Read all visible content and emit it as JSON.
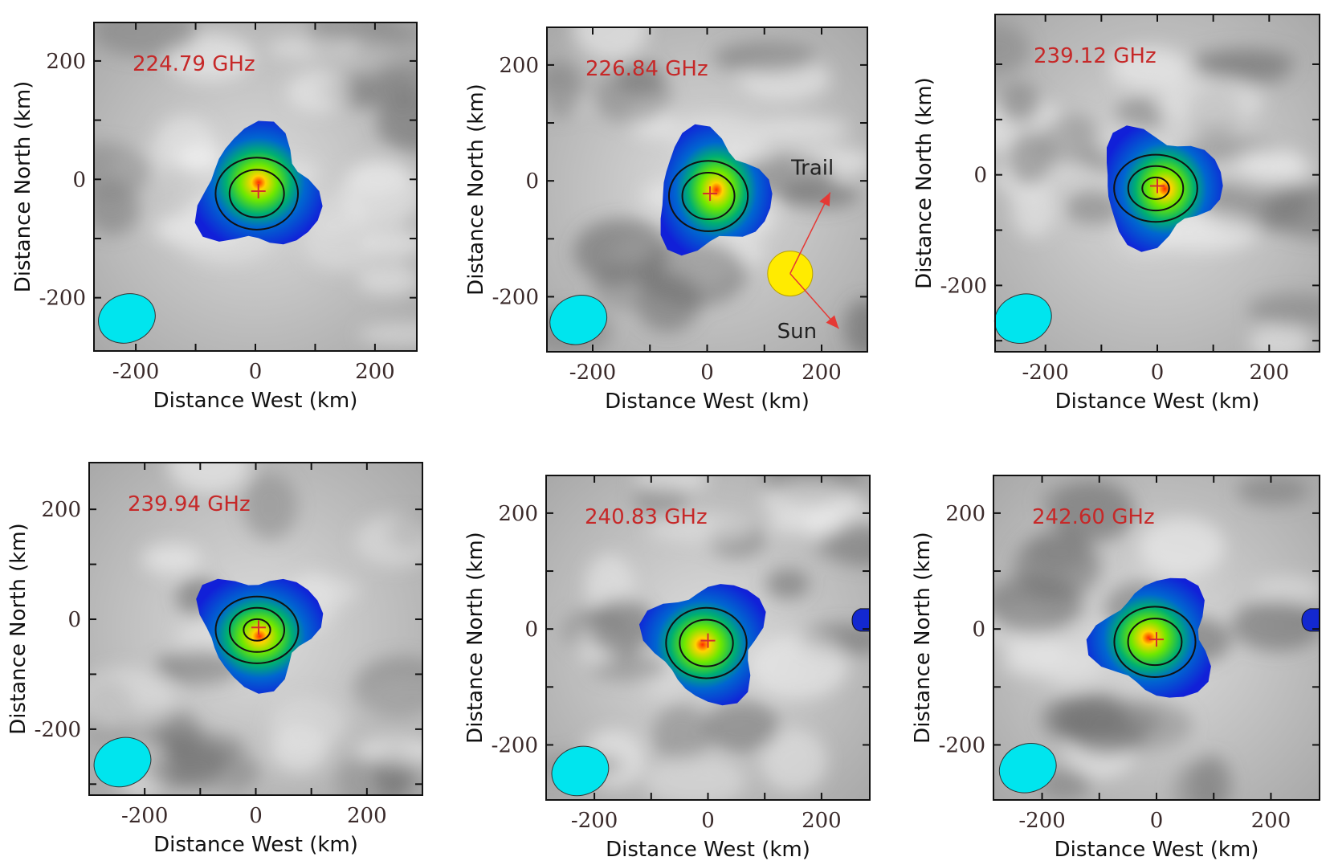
{
  "chart_data": [
    {
      "type": "heatmap",
      "title": "224.79 GHz",
      "xlabel": "Distance West (km)",
      "ylabel": "Distance North (km)",
      "xlim": [
        -270,
        270
      ],
      "ylim": [
        -290,
        265
      ],
      "xticks": [
        -200,
        0,
        200
      ],
      "yticks": [
        -200,
        0,
        200
      ],
      "source_center_km": [
        5,
        -20
      ],
      "peak_level": 0.55,
      "contour_count": 2,
      "beam_center_km": [
        -215,
        -235
      ]
    },
    {
      "type": "heatmap",
      "title": "226.84 GHz",
      "xlabel": "Distance West (km)",
      "ylabel": "Distance North (km)",
      "xlim": [
        -280,
        280
      ],
      "ylim": [
        -295,
        265
      ],
      "xticks": [
        -200,
        0,
        200
      ],
      "yticks": [
        -200,
        0,
        200
      ],
      "source_center_km": [
        5,
        -22
      ],
      "peak_level": 0.55,
      "contour_count": 2,
      "beam_center_km": [
        -225,
        -240
      ],
      "annotations": {
        "sun_label": "Sun",
        "trail_label": "Trail",
        "origin_km": [
          145,
          -160
        ],
        "trail_tip_km": [
          215,
          -20
        ],
        "sun_tip_km": [
          230,
          -255
        ]
      }
    },
    {
      "type": "heatmap",
      "title": "239.12 GHz",
      "xlabel": "Distance West (km)",
      "ylabel": "Distance North (km)",
      "xlim": [
        -290,
        290
      ],
      "ylim": [
        -320,
        290
      ],
      "xticks": [
        -200,
        0,
        200
      ],
      "yticks": [
        -200,
        0
      ],
      "source_center_km": [
        0,
        -20
      ],
      "peak_level": 0.95,
      "contour_count": 3,
      "beam_center_km": [
        -240,
        -260
      ]
    },
    {
      "type": "heatmap",
      "title": "239.94 GHz",
      "xlabel": "Distance West (km)",
      "ylabel": "Distance North (km)",
      "xlim": [
        -300,
        300
      ],
      "ylim": [
        -320,
        285
      ],
      "xticks": [
        -200,
        0,
        200
      ],
      "yticks": [
        -200,
        0,
        200
      ],
      "source_center_km": [
        5,
        -15
      ],
      "peak_level": 0.95,
      "contour_count": 3,
      "beam_center_km": [
        -240,
        -260
      ]
    },
    {
      "type": "heatmap",
      "title": "240.83 GHz",
      "xlabel": "Distance West (km)",
      "ylabel": "Distance North (km)",
      "xlim": [
        -285,
        285
      ],
      "ylim": [
        -295,
        265
      ],
      "xticks": [
        -200,
        0,
        200
      ],
      "yticks": [
        -200,
        0,
        200
      ],
      "source_center_km": [
        0,
        -20
      ],
      "peak_level": 0.7,
      "contour_count": 2,
      "beam_center_km": [
        -225,
        -245
      ]
    },
    {
      "type": "heatmap",
      "title": "242.60 GHz",
      "xlabel": "Distance West (km)",
      "ylabel": "Distance North (km)",
      "xlim": [
        -285,
        285
      ],
      "ylim": [
        -295,
        265
      ],
      "xticks": [
        -200,
        0,
        200
      ],
      "yticks": [
        -200,
        0,
        200
      ],
      "source_center_km": [
        0,
        -18
      ],
      "peak_level": 0.7,
      "contour_count": 2,
      "beam_center_km": [
        -225,
        -240
      ]
    }
  ],
  "colors": {
    "frequency_label": "#c62828",
    "beam_fill": "#00e5ee",
    "cross": "#d32f2f",
    "arrow": "#e53935",
    "sun_fill": "#ffeb00",
    "contour": "#111111",
    "background_light": "#eeeeee",
    "background_dark": "#666666"
  }
}
